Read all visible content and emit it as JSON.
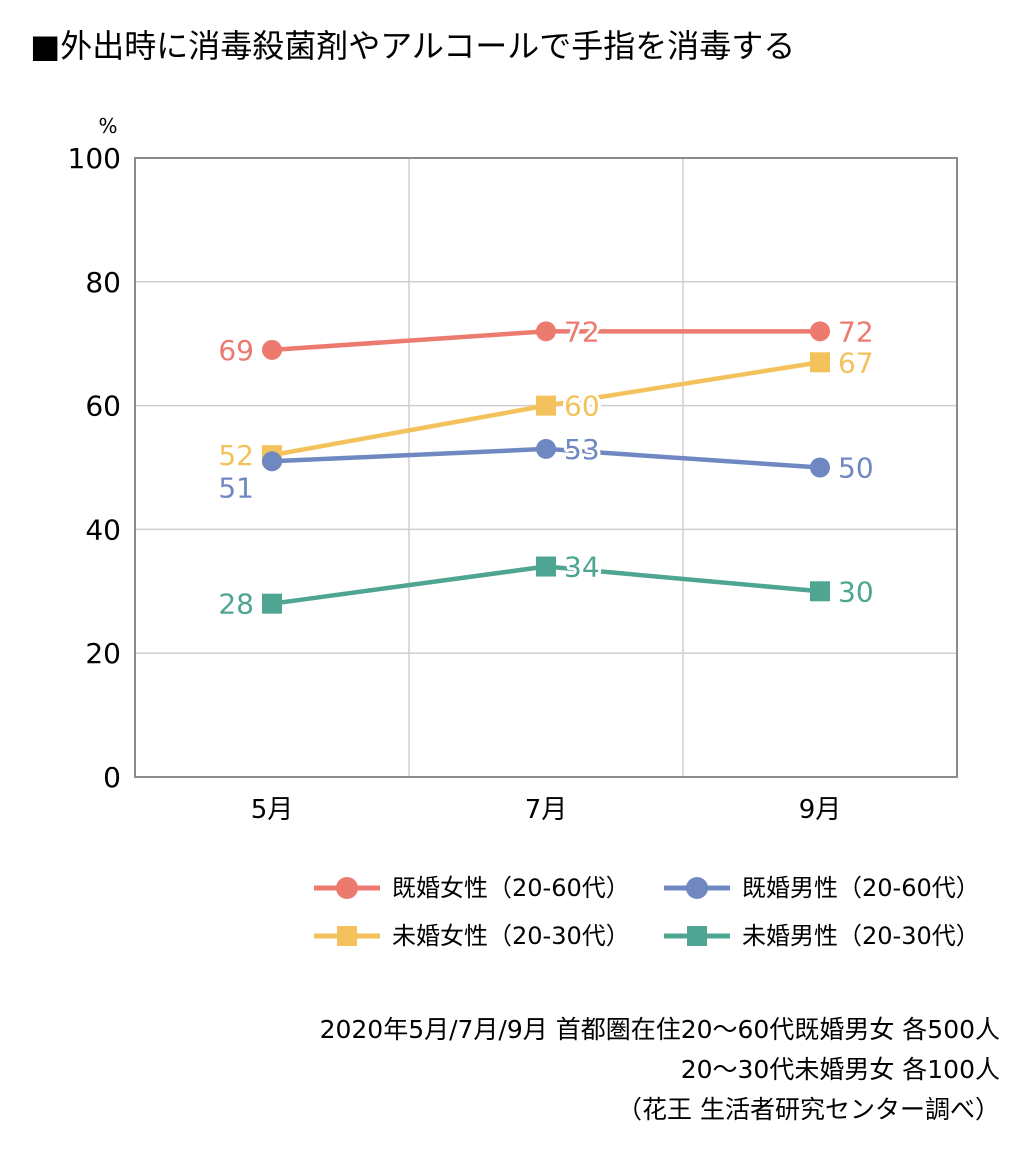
{
  "title": "■外出時に消毒殺菌剤やアルコールで手指を消毒する",
  "source": {
    "line1": "2020年5月/7月/9月 首都圏在住20〜60代既婚男女 各500人",
    "line2": "20〜30代未婚男女 各100人",
    "line3": "（花王 生活者研究センター調べ）"
  },
  "chart_data": {
    "type": "line",
    "title": "■外出時に消毒殺菌剤やアルコールで手指を消毒する",
    "ylabel": "%",
    "xlabel": "",
    "categories": [
      "5月",
      "7月",
      "9月"
    ],
    "ylim": [
      0,
      100
    ],
    "yticks": [
      0,
      20,
      40,
      60,
      80,
      100
    ],
    "grid": true,
    "legend_position": "bottom-right",
    "series": [
      {
        "name": "既婚女性（20-60代）",
        "values": [
          69,
          72,
          72
        ],
        "color": "#ec7a6f",
        "marker": "circle"
      },
      {
        "name": "既婚男性（20-60代）",
        "values": [
          51,
          53,
          50
        ],
        "color": "#7088c2",
        "marker": "circle"
      },
      {
        "name": "未婚女性（20-30代）",
        "values": [
          52,
          60,
          67
        ],
        "color": "#f4c25c",
        "marker": "square"
      },
      {
        "name": "未婚男性（20-30代）",
        "values": [
          28,
          34,
          30
        ],
        "color": "#4ea592",
        "marker": "square"
      }
    ]
  }
}
